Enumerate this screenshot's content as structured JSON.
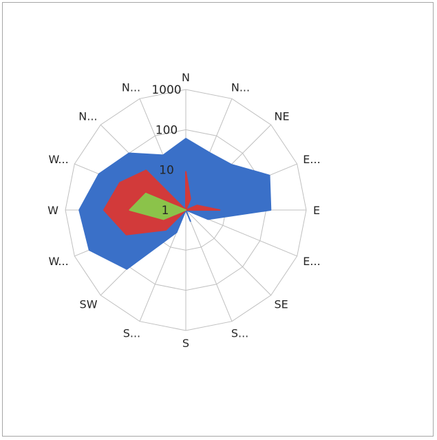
{
  "chart_data": {
    "type": "radar",
    "title": "",
    "scale": "log",
    "rlim": [
      1,
      1000
    ],
    "grid": true,
    "legend": "none",
    "directions": [
      "N",
      "N...",
      "NE",
      "E...",
      "E",
      "E...",
      "SE",
      "S...",
      "S",
      "S...",
      "SW",
      "W...",
      "W",
      "W...",
      "N...",
      "N..."
    ],
    "tick_labels": [
      "1",
      "10",
      "100",
      "1000"
    ],
    "tick_values": [
      1,
      10,
      100,
      1000
    ],
    "series": [
      {
        "color": "#3a70c8",
        "values": [
          60,
          35,
          40,
          180,
          130,
          4,
          1,
          2,
          1,
          4,
          120,
          400,
          450,
          220,
          100,
          30
        ]
      },
      {
        "color": "#d23a3a",
        "values": [
          9,
          2,
          1,
          2,
          7,
          1,
          1,
          1,
          1,
          1,
          5,
          40,
          110,
          60,
          25,
          1
        ]
      },
      {
        "color": "#8bc34a",
        "values": [
          1,
          1,
          1,
          1,
          1,
          1,
          1,
          1,
          1,
          1,
          1,
          4,
          25,
          12,
          1,
          1
        ]
      }
    ]
  }
}
